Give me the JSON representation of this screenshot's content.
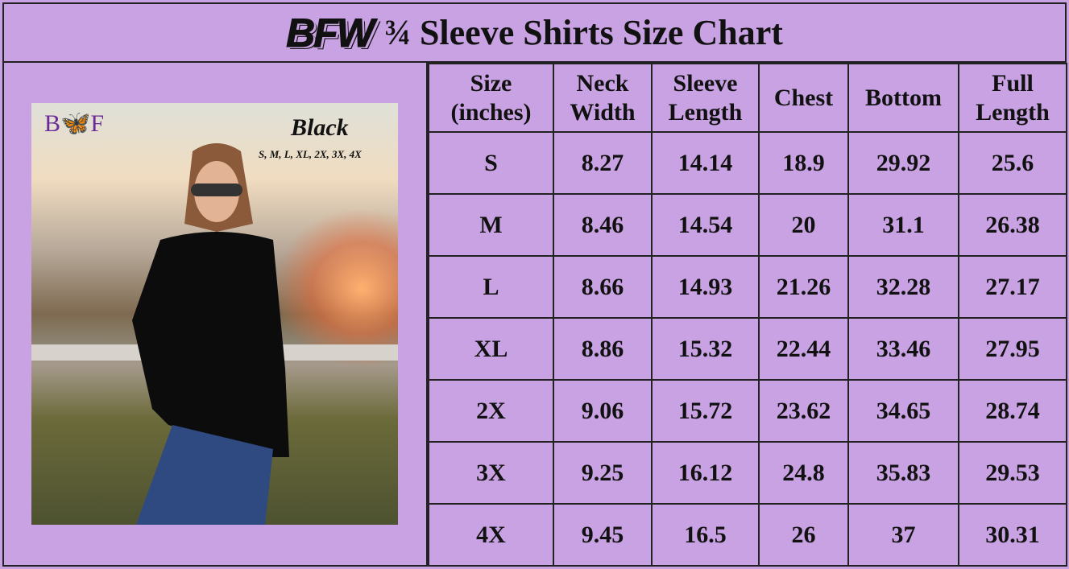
{
  "title": {
    "logo": "BFW",
    "text": "¾ Sleeve Shirts Size Chart"
  },
  "photo": {
    "brand": "B🦋F",
    "color": "Black",
    "sizes": "S, M, L, XL, 2X, 3X, 4X"
  },
  "table": {
    "headers": [
      "Size (inches)",
      "Neck Width",
      "Sleeve Length",
      "Chest",
      "Bottom",
      "Full Length"
    ],
    "rows": [
      [
        "S",
        "8.27",
        "14.14",
        "18.9",
        "29.92",
        "25.6"
      ],
      [
        "M",
        "8.46",
        "14.54",
        "20",
        "31.1",
        "26.38"
      ],
      [
        "L",
        "8.66",
        "14.93",
        "21.26",
        "32.28",
        "27.17"
      ],
      [
        "XL",
        "8.86",
        "15.32",
        "22.44",
        "33.46",
        "27.95"
      ],
      [
        "2X",
        "9.06",
        "15.72",
        "23.62",
        "34.65",
        "28.74"
      ],
      [
        "3X",
        "9.25",
        "16.12",
        "24.8",
        "35.83",
        "29.53"
      ],
      [
        "4X",
        "9.45",
        "16.5",
        "26",
        "37",
        "30.31"
      ]
    ]
  },
  "colors": {
    "background": "#c8a2e2",
    "border": "#222222",
    "brand": "#6a2a9a"
  }
}
